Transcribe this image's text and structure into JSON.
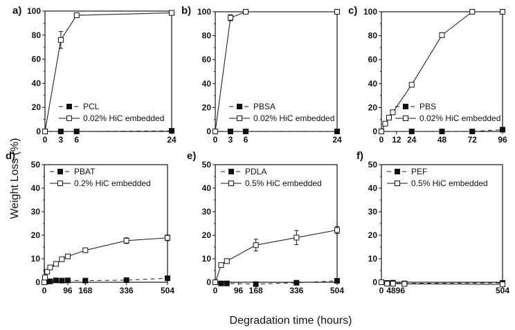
{
  "figure": {
    "ylabel": "Weight Loss (%)",
    "xlabel": "Degradation time (hours)"
  },
  "chart_data": [
    {
      "type": "line",
      "panel": "a)",
      "xlim": [
        0,
        24
      ],
      "ylim": [
        0,
        100
      ],
      "xticks": [
        0,
        3,
        6,
        24
      ],
      "yticks": [
        0,
        20,
        40,
        60,
        80,
        100
      ],
      "legend_position": "bottom-right",
      "series": [
        {
          "name": "PCL",
          "style": "dashed-filled-square",
          "x": [
            0,
            3,
            6,
            24
          ],
          "y": [
            0,
            0,
            0,
            0.5
          ],
          "err": [
            0,
            0,
            0,
            0
          ]
        },
        {
          "name": "0.02% HiC embedded",
          "style": "solid-open-square",
          "x": [
            0,
            3,
            6,
            24
          ],
          "y": [
            0,
            76,
            96.5,
            98.5
          ],
          "err": [
            0,
            7,
            0.5,
            0.5
          ]
        }
      ]
    },
    {
      "type": "line",
      "panel": "b)",
      "xlim": [
        0,
        24
      ],
      "ylim": [
        0,
        100
      ],
      "xticks": [
        0,
        3,
        6,
        24
      ],
      "yticks": [
        0,
        20,
        40,
        60,
        80,
        100
      ],
      "legend_position": "bottom-right",
      "series": [
        {
          "name": "PBSA",
          "style": "dashed-filled-square",
          "x": [
            0,
            3,
            6,
            24
          ],
          "y": [
            0,
            0,
            0,
            0
          ],
          "err": [
            0,
            0,
            0,
            0
          ]
        },
        {
          "name": "0.02% HiC embedded",
          "style": "solid-open-square",
          "x": [
            0,
            3,
            6,
            24
          ],
          "y": [
            0,
            95,
            100,
            100
          ],
          "err": [
            0,
            2.5,
            0,
            0
          ]
        }
      ]
    },
    {
      "type": "line",
      "panel": "c)",
      "xlim": [
        0,
        96
      ],
      "ylim": [
        0,
        100
      ],
      "xticks": [
        0,
        12,
        24,
        48,
        72,
        96
      ],
      "yticks": [
        0,
        20,
        40,
        60,
        80,
        100
      ],
      "legend_position": "bottom-right",
      "series": [
        {
          "name": "PBS",
          "style": "dashed-filled-square",
          "x": [
            0,
            24,
            48,
            72,
            96
          ],
          "y": [
            0,
            0,
            0,
            0,
            1.5
          ],
          "err": [
            0,
            0,
            0,
            0,
            0
          ]
        },
        {
          "name": "0.02% HiC embedded",
          "style": "solid-open-square",
          "x": [
            0,
            3,
            6,
            9,
            24,
            48,
            72,
            96
          ],
          "y": [
            0,
            6.5,
            11.5,
            16,
            39,
            80.5,
            100,
            100
          ],
          "err": [
            0,
            1,
            1.5,
            1,
            1.5,
            2,
            0,
            0
          ]
        }
      ]
    },
    {
      "type": "line",
      "panel": "d)",
      "xlim": [
        0,
        504
      ],
      "ylim": [
        0,
        50
      ],
      "xticks": [
        0,
        96,
        168,
        336,
        504
      ],
      "yticks": [
        0,
        10,
        20,
        30,
        40,
        50
      ],
      "legend_position": "top-left",
      "series": [
        {
          "name": "PBAT",
          "style": "dashed-filled-square",
          "x": [
            0,
            6,
            12,
            24,
            48,
            72,
            96,
            168,
            336,
            504
          ],
          "y": [
            0,
            0.2,
            0.3,
            0.4,
            0.8,
            0.7,
            0.8,
            0.7,
            0.9,
            1.7
          ],
          "err": [
            0,
            0,
            0,
            0,
            0,
            0,
            0,
            0,
            0,
            0
          ]
        },
        {
          "name": "0.2% HiC embedded",
          "style": "solid-open-square",
          "x": [
            0,
            3,
            12,
            24,
            48,
            72,
            96,
            168,
            336,
            504
          ],
          "y": [
            0,
            2,
            4.5,
            6.3,
            7.8,
            9.8,
            11,
            13.6,
            17.7,
            18.9
          ],
          "err": [
            0,
            0.5,
            0.5,
            0.7,
            0.4,
            0.5,
            0.5,
            0.5,
            1.2,
            1.2
          ]
        }
      ]
    },
    {
      "type": "line",
      "panel": "e)",
      "xlim": [
        0,
        504
      ],
      "ylim": [
        0,
        50
      ],
      "xticks": [
        0,
        96,
        168,
        336,
        504
      ],
      "yticks": [
        0,
        10,
        20,
        30,
        40,
        50
      ],
      "legend_position": "top-left",
      "series": [
        {
          "name": "PDLA",
          "style": "dashed-filled-square",
          "x": [
            0,
            24,
            48,
            168,
            336,
            504
          ],
          "y": [
            0,
            -0.5,
            -0.5,
            -0.8,
            -0.2,
            0.6
          ],
          "err": [
            0,
            0,
            0,
            0,
            0,
            0
          ]
        },
        {
          "name": "0.5% HiC embedded",
          "style": "solid-open-square",
          "x": [
            0,
            24,
            48,
            168,
            336,
            504
          ],
          "y": [
            0,
            7.3,
            9,
            15.8,
            19,
            22.2
          ],
          "err": [
            0,
            0.7,
            0.9,
            2.5,
            3,
            1.5
          ]
        }
      ]
    },
    {
      "type": "line",
      "panel": "f)",
      "xlim": [
        0,
        504
      ],
      "ylim": [
        0,
        50
      ],
      "xticks": [
        0,
        48,
        96,
        504
      ],
      "xticklabels": [
        "0",
        "4896",
        "",
        "504"
      ],
      "yticks": [
        0,
        10,
        20,
        30,
        40,
        50
      ],
      "legend_position": "top-left",
      "series": [
        {
          "name": "PEF",
          "style": "dashed-filled-square",
          "x": [
            0,
            24,
            48,
            96,
            504
          ],
          "y": [
            0,
            -0.3,
            -0.2,
            -0.5,
            -0.3
          ],
          "err": [
            0,
            0,
            0,
            0,
            0
          ]
        },
        {
          "name": "0.5% HiC embedded",
          "style": "solid-open-square",
          "x": [
            0,
            24,
            48,
            96,
            504
          ],
          "y": [
            0,
            -0.6,
            -0.6,
            -0.7,
            -0.9
          ],
          "err": [
            0,
            0,
            0,
            0,
            0
          ]
        }
      ]
    }
  ]
}
